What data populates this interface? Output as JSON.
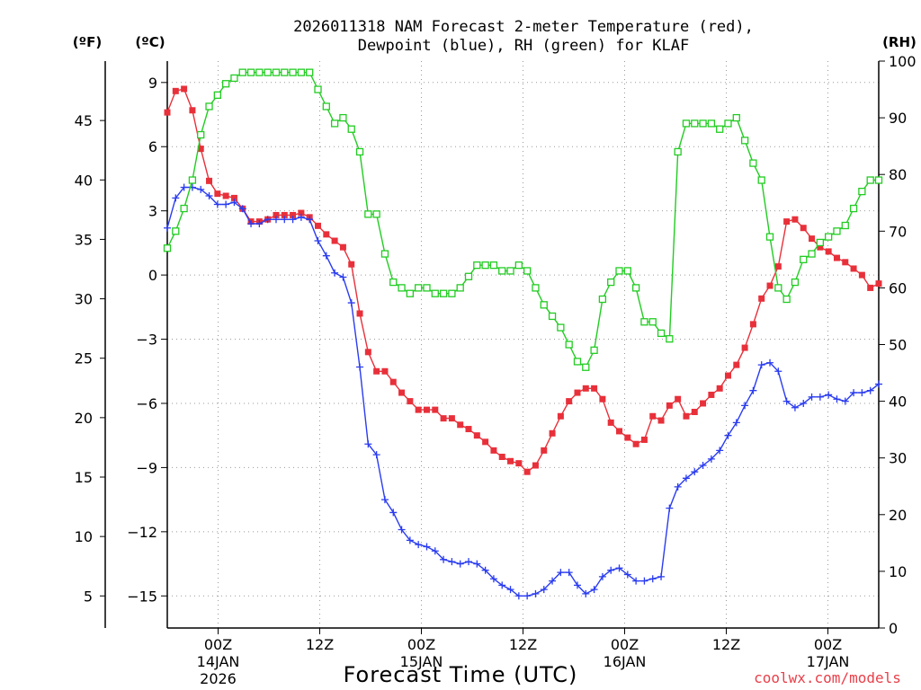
{
  "chart_data": {
    "type": "line",
    "title_line1": "2026011318 NAM Forecast 2-meter Temperature (red),",
    "title_line2": "Dewpoint (blue), RH (green) for KLAF",
    "xlabel": "Forecast Time (UTC)",
    "watermark": "coolwx.com/models",
    "unit_labels": {
      "fahrenheit": "(ºF)",
      "celsius": "(ºC)",
      "rh": "(RH)"
    },
    "x_range_hours": [
      0,
      84
    ],
    "x_ticks": [
      {
        "hour": 6,
        "label": "00Z",
        "sub1": "14JAN",
        "sub2": "2026"
      },
      {
        "hour": 18,
        "label": "12Z",
        "sub1": "",
        "sub2": ""
      },
      {
        "hour": 30,
        "label": "00Z",
        "sub1": "15JAN",
        "sub2": ""
      },
      {
        "hour": 42,
        "label": "12Z",
        "sub1": "",
        "sub2": ""
      },
      {
        "hour": 54,
        "label": "00Z",
        "sub1": "16JAN",
        "sub2": ""
      },
      {
        "hour": 66,
        "label": "12Z",
        "sub1": "",
        "sub2": ""
      },
      {
        "hour": 78,
        "label": "00Z",
        "sub1": "17JAN",
        "sub2": ""
      }
    ],
    "celsius_axis": {
      "range": [
        -16.5,
        10
      ],
      "ticks": [
        9,
        6,
        3,
        0,
        -3,
        -6,
        -9,
        -12,
        -15
      ],
      "tick_labels": [
        "9",
        "6",
        "3",
        "0",
        "−3",
        "−6",
        "−9",
        "−12",
        "−15"
      ]
    },
    "fahrenheit_ticks": [
      "45",
      "40",
      "35",
      "30",
      "25",
      "20",
      "15",
      "10",
      "5"
    ],
    "rh_axis": {
      "range": [
        0,
        100
      ],
      "ticks": [
        0,
        10,
        20,
        30,
        40,
        50,
        60,
        70,
        80,
        90,
        100
      ],
      "tick_labels": [
        "0",
        "10",
        "20",
        "30",
        "40",
        "50",
        "60",
        "70",
        "80",
        "90",
        "100"
      ]
    },
    "grid": true,
    "series": [
      {
        "name": "Temperature",
        "units": "C",
        "color": "#e8303a",
        "marker": "filled-square",
        "values": [
          7.6,
          8.6,
          8.7,
          7.7,
          5.9,
          4.4,
          3.8,
          3.7,
          3.6,
          3.1,
          2.5,
          2.5,
          2.6,
          2.8,
          2.8,
          2.8,
          2.9,
          2.7,
          2.3,
          1.9,
          1.6,
          1.3,
          0.5,
          -1.8,
          -3.6,
          -4.5,
          -4.5,
          -5.0,
          -5.5,
          -5.9,
          -6.3,
          -6.3,
          -6.3,
          -6.7,
          -6.7,
          -7.0,
          -7.2,
          -7.5,
          -7.8,
          -8.2,
          -8.5,
          -8.7,
          -8.8,
          -9.2,
          -8.9,
          -8.2,
          -7.4,
          -6.6,
          -5.9,
          -5.5,
          -5.3,
          -5.3,
          -5.8,
          -6.9,
          -7.3,
          -7.6,
          -7.9,
          -7.7,
          -6.6,
          -6.8,
          -6.1,
          -5.8,
          -6.6,
          -6.4,
          -6.0,
          -5.6,
          -5.3,
          -4.7,
          -4.2,
          -3.4,
          -2.3,
          -1.1,
          -0.5,
          0.4,
          2.5,
          2.6,
          2.2,
          1.7,
          1.3,
          1.1,
          0.8,
          0.6,
          0.3,
          0.0,
          -0.6,
          -0.4
        ]
      },
      {
        "name": "Dewpoint",
        "units": "C",
        "color": "#2a3cf0",
        "marker": "plus",
        "values": [
          2.2,
          3.6,
          4.1,
          4.1,
          4.0,
          3.7,
          3.3,
          3.3,
          3.4,
          3.1,
          2.4,
          2.4,
          2.6,
          2.6,
          2.6,
          2.6,
          2.7,
          2.6,
          1.6,
          0.9,
          0.1,
          -0.1,
          -1.3,
          -4.3,
          -7.9,
          -8.4,
          -10.5,
          -11.1,
          -11.9,
          -12.4,
          -12.6,
          -12.7,
          -12.9,
          -13.3,
          -13.4,
          -13.5,
          -13.4,
          -13.5,
          -13.8,
          -14.2,
          -14.5,
          -14.7,
          -15.0,
          -15.0,
          -14.9,
          -14.7,
          -14.3,
          -13.9,
          -13.9,
          -14.5,
          -14.9,
          -14.7,
          -14.1,
          -13.8,
          -13.7,
          -14.0,
          -14.3,
          -14.3,
          -14.2,
          -14.1,
          -10.9,
          -9.9,
          -9.5,
          -9.2,
          -8.9,
          -8.6,
          -8.2,
          -7.5,
          -6.9,
          -6.1,
          -5.4,
          -4.2,
          -4.1,
          -4.5,
          -5.9,
          -6.2,
          -6.0,
          -5.7,
          -5.7,
          -5.6,
          -5.8,
          -5.9,
          -5.5,
          -5.5,
          -5.4,
          -5.1
        ]
      },
      {
        "name": "Relative Humidity",
        "units": "%",
        "color": "#22cc22",
        "marker": "open-square",
        "values": [
          67,
          70,
          74,
          79,
          87,
          92,
          94,
          96,
          97,
          98,
          98,
          98,
          98,
          98,
          98,
          98,
          98,
          98,
          95,
          92,
          89,
          90,
          88,
          84,
          73,
          73,
          66,
          61,
          60,
          59,
          60,
          60,
          59,
          59,
          59,
          60,
          62,
          64,
          64,
          64,
          63,
          63,
          64,
          63,
          60,
          57,
          55,
          53,
          50,
          47,
          46,
          49,
          58,
          61,
          63,
          63,
          60,
          54,
          54,
          52,
          51,
          84,
          89,
          89,
          89,
          89,
          88,
          89,
          90,
          86,
          82,
          79,
          69,
          60,
          58,
          61,
          65,
          66,
          68,
          69,
          70,
          71,
          74,
          77,
          79,
          79
        ]
      }
    ]
  }
}
